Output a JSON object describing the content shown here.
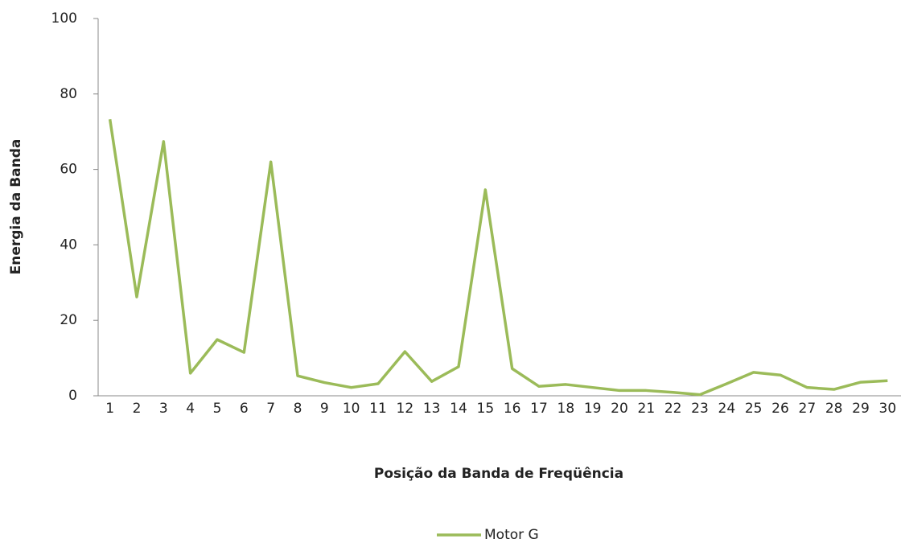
{
  "chart_data": {
    "type": "line",
    "x_label": "Posição da Banda de Freqüência",
    "y_label": "Energia da Banda",
    "categories": [
      "1",
      "2",
      "3",
      "4",
      "5",
      "6",
      "7",
      "8",
      "9",
      "10",
      "11",
      "12",
      "13",
      "14",
      "15",
      "16",
      "17",
      "18",
      "19",
      "20",
      "21",
      "22",
      "23",
      "24",
      "25",
      "26",
      "27",
      "28",
      "29",
      "30"
    ],
    "series": [
      {
        "name": "Motor G",
        "color": "#9bbb59",
        "values": [
          73.3,
          26.2,
          67.4,
          6,
          14.9,
          11.5,
          62,
          5.3,
          3.5,
          2.2,
          3.2,
          11.7,
          3.8,
          7.7,
          54.6,
          7.2,
          2.5,
          3.0,
          2.2,
          1.4,
          1.4,
          0.9,
          0.3,
          3.2,
          6.2,
          5.5,
          2.2,
          1.7,
          3.6,
          4.0
        ]
      }
    ],
    "ylim": [
      0,
      100
    ],
    "yticks": [
      0,
      20,
      40,
      60,
      80,
      100
    ],
    "legend": "bottom"
  }
}
